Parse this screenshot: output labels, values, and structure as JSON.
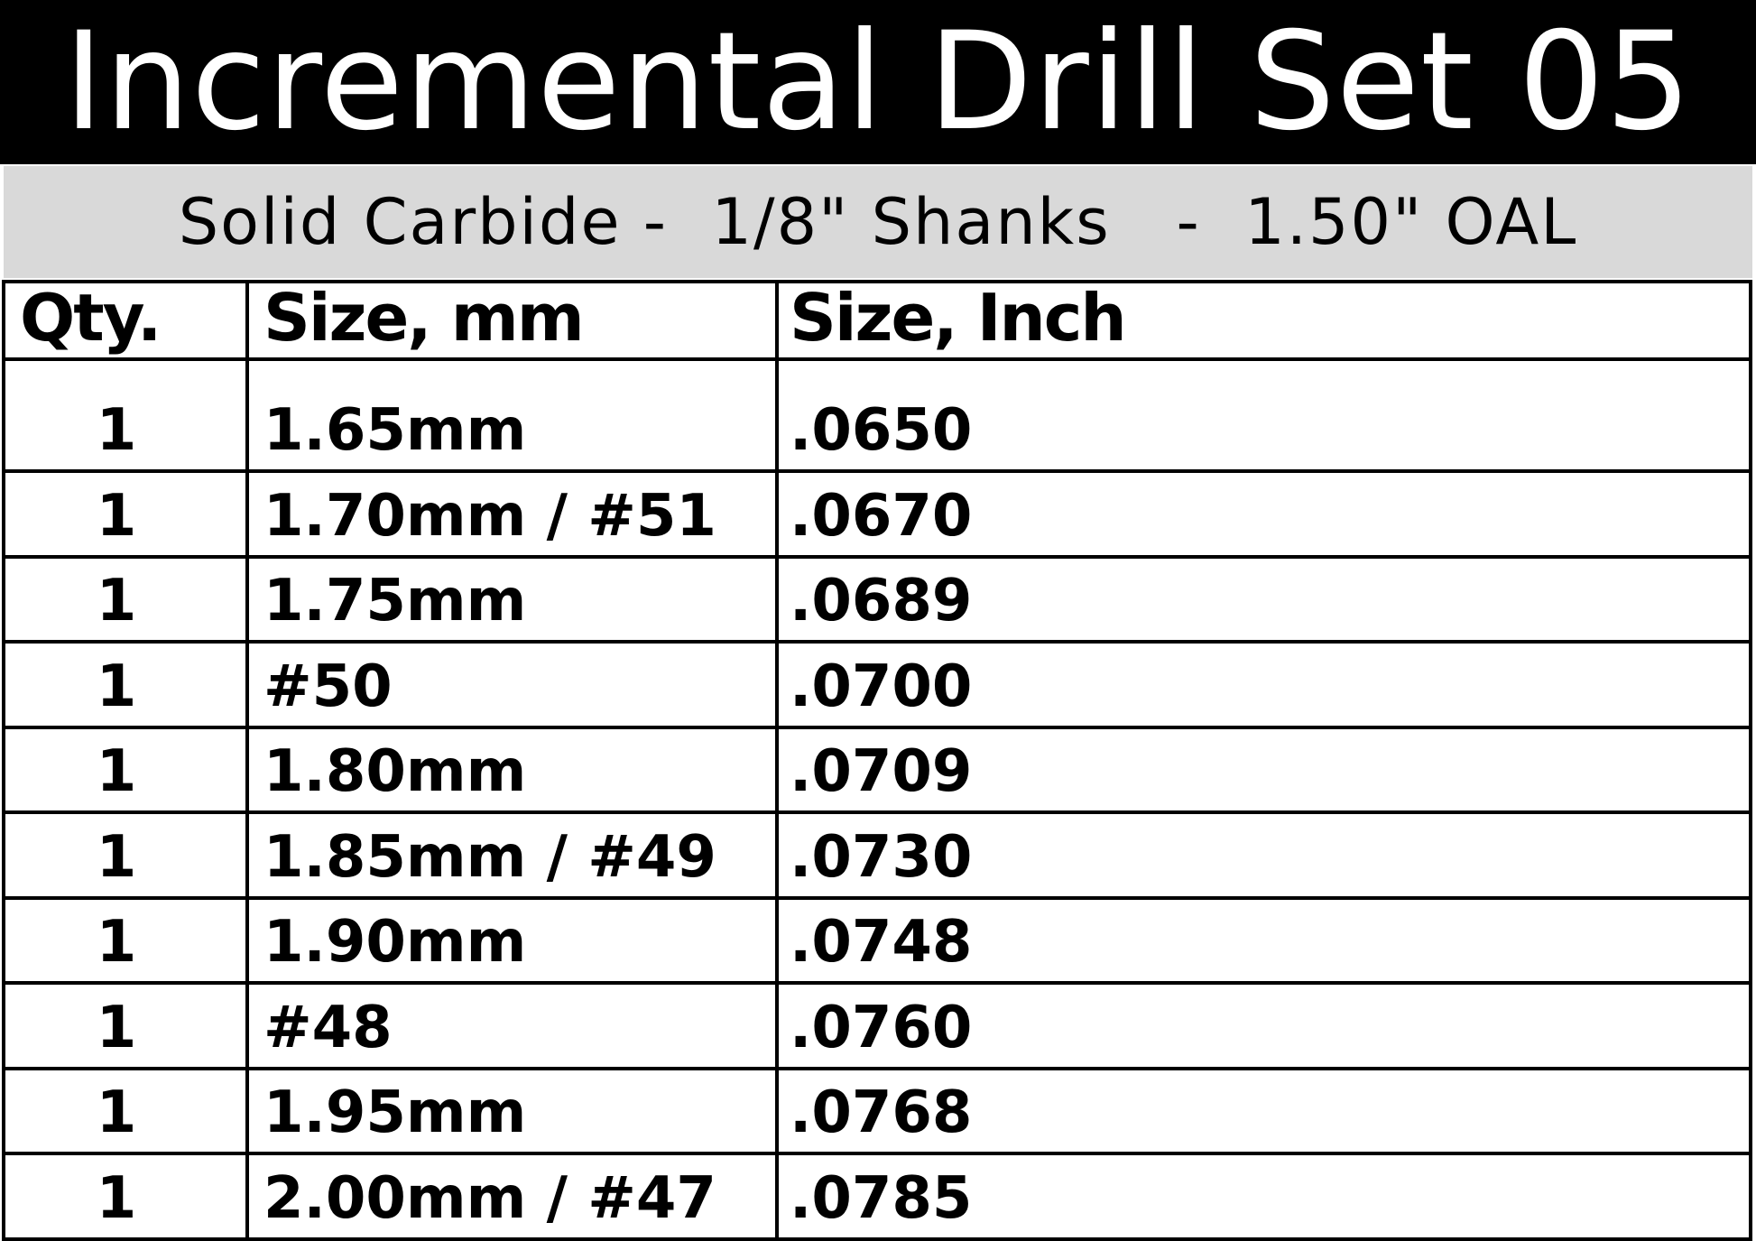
{
  "title": "Incremental Drill Set 05",
  "subtitle": "Solid Carbide -  1/8\" Shanks   -  1.50\" OAL",
  "table": {
    "headers": [
      "Qty.",
      "Size, mm",
      "Size, Inch"
    ],
    "rows": [
      [
        "1",
        "1.65mm",
        ".0650"
      ],
      [
        "1",
        "1.70mm / #51",
        ".0670"
      ],
      [
        "1",
        "1.75mm",
        ".0689"
      ],
      [
        "1",
        "#50",
        ".0700"
      ],
      [
        "1",
        "1.80mm",
        ".0709"
      ],
      [
        "1",
        "1.85mm / #49",
        ".0730"
      ],
      [
        "1",
        "1.90mm",
        ".0748"
      ],
      [
        "1",
        "#48",
        ".0760"
      ],
      [
        "1",
        "1.95mm",
        ".0768"
      ],
      [
        "1",
        "2.00mm / #47",
        ".0785"
      ]
    ]
  }
}
